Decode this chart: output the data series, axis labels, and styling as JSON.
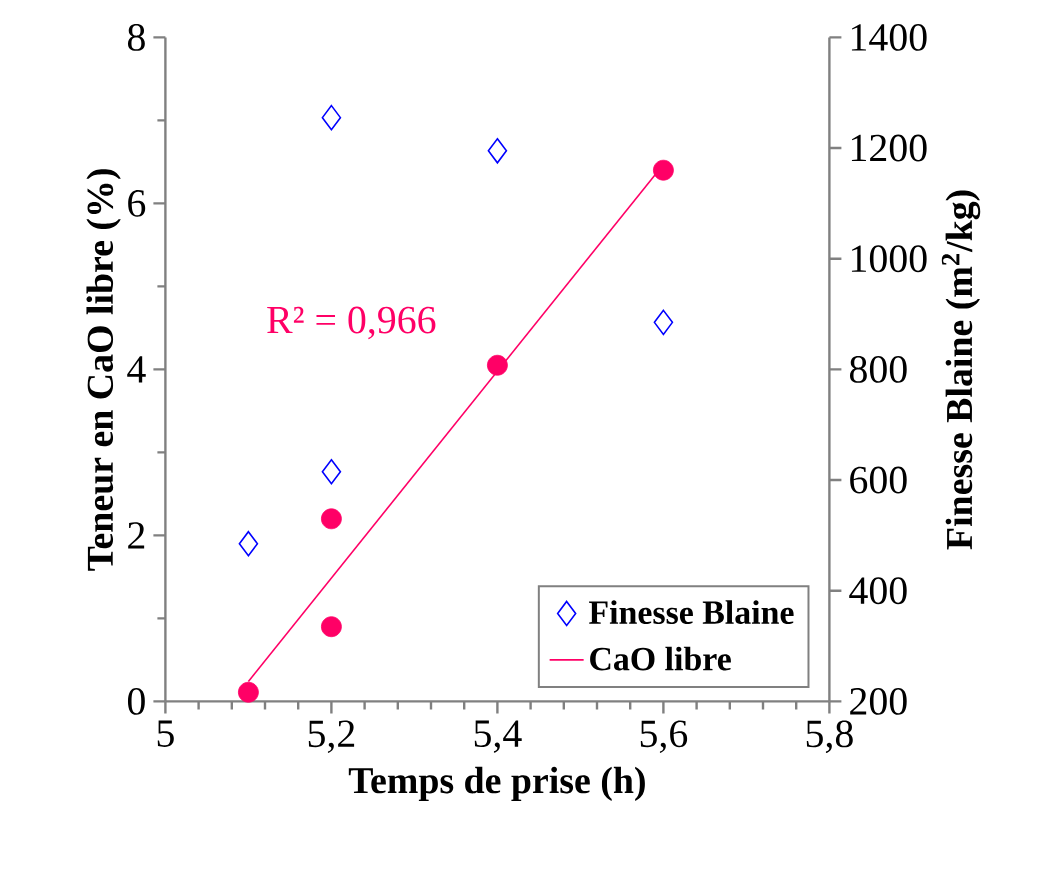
{
  "chart_data": {
    "type": "scatter",
    "xlabel": "Temps de prise  (h)",
    "ylabel": "Teneur en CaO libre (%)",
    "y2label": "Finesse Blaine (m$^{2}$/kg)",
    "xlim": [
      5,
      5.8
    ],
    "xticks": [
      5,
      {
        "value": 5.2,
        "label": "5,2"
      },
      {
        "value": 5.4,
        "label": "5,4"
      },
      {
        "value": 5.6,
        "label": "5,6"
      },
      {
        "value": 5.8,
        "label": "5,8"
      }
    ],
    "ylim": [
      0,
      8
    ],
    "yticks": [
      0,
      2,
      4,
      6,
      8
    ],
    "y2lim": [
      200,
      1400
    ],
    "y2ticks": [
      200,
      400,
      600,
      800,
      1000,
      1200,
      1400
    ],
    "legend": "bottom right",
    "grid": false,
    "annotations": [
      "R² = 0,966"
    ],
    "series": [
      {
        "name": "Finesse Blaine",
        "axis": "y2",
        "color": "#0000ff",
        "marker": "diamond",
        "x": [
          5.1,
          5.2,
          5.2,
          5.4,
          5.6
        ],
        "values": [
          485,
          615,
          1255,
          1195,
          885
        ]
      },
      {
        "axis": "y",
        "color": "#ff0066",
        "marker": "circle",
        "x": [
          5.1,
          5.2,
          5.2,
          5.4,
          5.6
        ],
        "values": [
          0.11,
          2.2,
          0.9,
          4.05,
          6.4
        ]
      },
      {
        "type": "line",
        "name": "CaO libre",
        "axis": "y",
        "color": "#ff0066",
        "marker": "none",
        "x": [
          5.1,
          5.6
        ],
        "values": [
          0.24,
          6.47
        ]
      }
    ]
  }
}
